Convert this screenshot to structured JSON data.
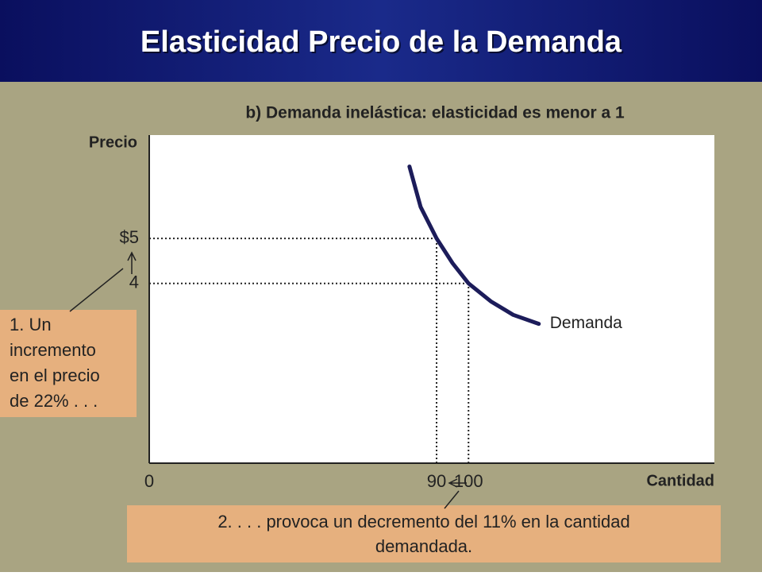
{
  "slide": {
    "title": "Elasticidad Precio de la Demanda"
  },
  "chart_data": {
    "type": "line",
    "title": "b) Demanda inelástica: elasticidad es menor a 1",
    "x_label": "Cantidad",
    "y_label": "Precio",
    "x": [
      81.5,
      85,
      90,
      95,
      100,
      107,
      114,
      122
    ],
    "series": [
      {
        "name": "Demanda",
        "color": "#1c1c5a",
        "values": [
          6.6,
          5.7,
          5,
          4.45,
          4,
          3.6,
          3.3,
          3.1
        ]
      }
    ],
    "xlim": [
      0,
      177
    ],
    "ylim": [
      0,
      7.3
    ],
    "xticks": [
      0,
      90,
      100
    ],
    "yticks": [
      4,
      {
        "value": 5,
        "label": "$5"
      }
    ],
    "annotations": [
      [
        "1. Un",
        "incremento",
        "en el precio",
        "de 22% . . ."
      ],
      [
        "2.  . . . provoca un decremento del 11% en la cantidad",
        "demandada."
      ]
    ]
  }
}
